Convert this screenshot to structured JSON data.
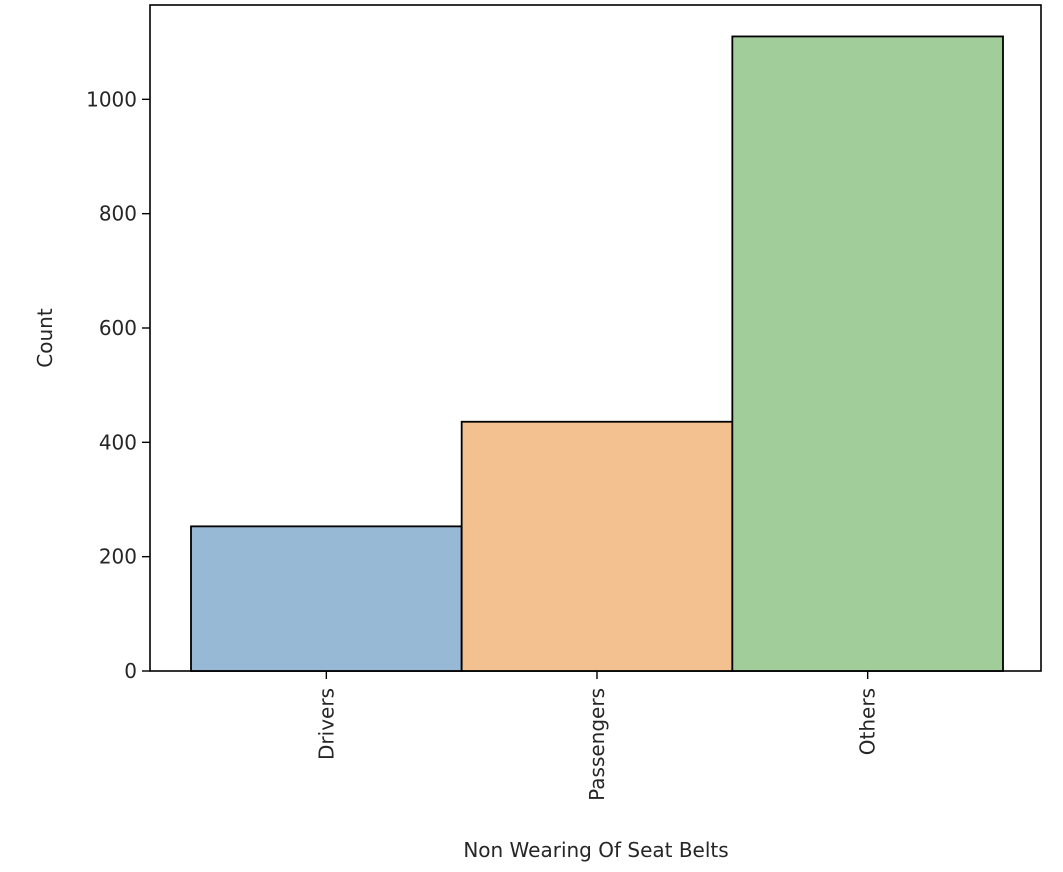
{
  "chart_data": {
    "type": "bar",
    "categories": [
      "Drivers",
      "Passengers",
      "Others"
    ],
    "values": [
      253,
      436,
      1110
    ],
    "colors": [
      "#98b9d6",
      "#f3c190",
      "#a1cd9a"
    ],
    "edge_color": "#000000",
    "title": "",
    "xlabel": "Non Wearing Of Seat Belts",
    "ylabel": "Count",
    "ylim": [
      0,
      1165
    ],
    "yticks": [
      0,
      200,
      400,
      600,
      800,
      1000
    ],
    "x_tick_rotation": "vertical",
    "grid": false,
    "legend": null
  }
}
